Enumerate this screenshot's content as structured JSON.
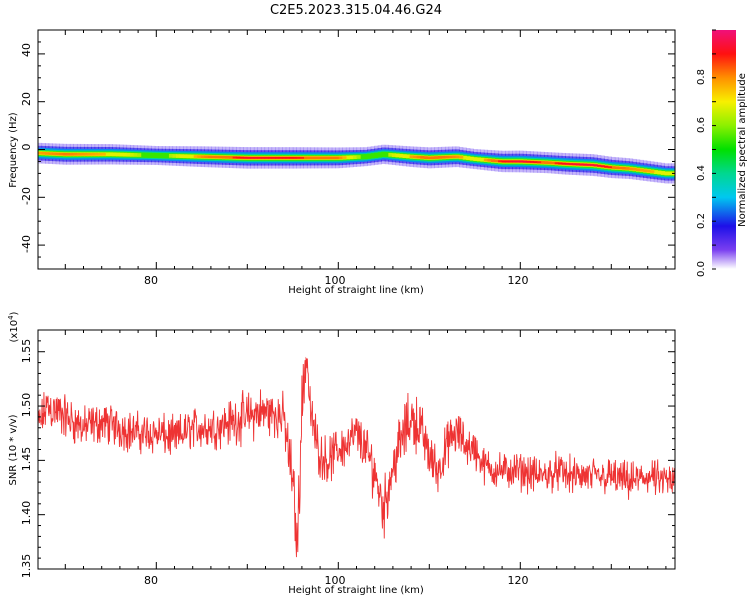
{
  "title": "C2E5.2023.315.04.46.G24",
  "chart_data": [
    {
      "type": "heatmap",
      "description_of_mark": "spectrogram ridge",
      "xlabel": "Height of straight line (km)",
      "ylabel": "Frequency (Hz)",
      "xlim": [
        67,
        137
      ],
      "ylim": [
        -50,
        50
      ],
      "x_ticks": [
        "80",
        "100",
        "120"
      ],
      "y_ticks": [
        "40",
        "20",
        "0",
        "-20",
        "-40"
      ],
      "ridge_x": [
        67,
        70,
        75,
        80,
        85,
        90,
        95,
        100,
        103,
        105,
        108,
        110,
        113,
        115,
        118,
        120,
        123,
        125,
        128,
        130,
        132,
        134,
        136
      ],
      "ridge_y": [
        -1.5,
        -2,
        -2,
        -2.5,
        -3,
        -3.5,
        -3.5,
        -3.5,
        -3,
        -2,
        -3,
        -3.5,
        -3,
        -4,
        -5,
        -5,
        -5.5,
        -6,
        -6.5,
        -7.5,
        -8,
        -9,
        -10
      ],
      "ridge_amp": [
        0.78,
        0.82,
        0.75,
        0.55,
        0.8,
        0.92,
        0.9,
        0.82,
        0.55,
        0.6,
        0.78,
        0.85,
        0.8,
        0.7,
        0.9,
        0.95,
        0.85,
        0.92,
        0.95,
        0.88,
        0.8,
        0.78,
        0.72
      ],
      "colorbar": {
        "label": "Normalized spectral amplitude",
        "ticks": [
          "0.0",
          "0.2",
          "0.4",
          "0.6",
          "0.8"
        ],
        "range": [
          0,
          1
        ]
      }
    },
    {
      "type": "line",
      "xlabel": "Height of straight line (km)",
      "ylabel": "SNR (10 * v/v)",
      "y_multiplier": "(x10",
      "y_multiplier_exp": "4",
      "y_multiplier_close": ")",
      "xlim": [
        67,
        137
      ],
      "ylim": [
        1.35,
        1.57
      ],
      "x_ticks": [
        "80",
        "100",
        "120"
      ],
      "y_ticks": [
        "1.55",
        "1.50",
        "1.45",
        "1.40",
        "1.35"
      ],
      "series": [
        {
          "color": "#ee3333",
          "x": [
            67,
            68,
            70,
            72,
            74,
            76,
            78,
            80,
            82,
            84,
            86,
            88,
            90,
            92,
            94,
            95,
            95.5,
            96,
            96.5,
            97,
            98,
            99,
            100,
            101,
            102,
            103,
            104,
            105,
            106,
            107,
            108,
            109,
            110,
            111,
            112,
            113,
            114,
            115,
            116,
            118,
            120,
            122,
            124,
            126,
            128,
            130,
            132,
            134,
            136,
            137
          ],
          "y": [
            1.48,
            1.5,
            1.49,
            1.48,
            1.485,
            1.48,
            1.475,
            1.475,
            1.47,
            1.48,
            1.48,
            1.485,
            1.49,
            1.495,
            1.49,
            1.43,
            1.37,
            1.5,
            1.55,
            1.49,
            1.455,
            1.45,
            1.46,
            1.465,
            1.475,
            1.46,
            1.44,
            1.405,
            1.445,
            1.47,
            1.49,
            1.48,
            1.455,
            1.44,
            1.465,
            1.475,
            1.465,
            1.46,
            1.445,
            1.44,
            1.44,
            1.435,
            1.44,
            1.435,
            1.435,
            1.435,
            1.43,
            1.435,
            1.43,
            1.43
          ],
          "noise": [
            0.018,
            0.02,
            0.02,
            0.018,
            0.018,
            0.018,
            0.018,
            0.018,
            0.018,
            0.018,
            0.018,
            0.02,
            0.022,
            0.022,
            0.02,
            0.03,
            0.03,
            0.03,
            0.025,
            0.02,
            0.02,
            0.02,
            0.02,
            0.02,
            0.02,
            0.02,
            0.025,
            0.025,
            0.025,
            0.025,
            0.025,
            0.025,
            0.02,
            0.02,
            0.02,
            0.02,
            0.018,
            0.018,
            0.016,
            0.016,
            0.016,
            0.016,
            0.016,
            0.016,
            0.016,
            0.016,
            0.016,
            0.016,
            0.016,
            0.016
          ]
        }
      ]
    }
  ]
}
